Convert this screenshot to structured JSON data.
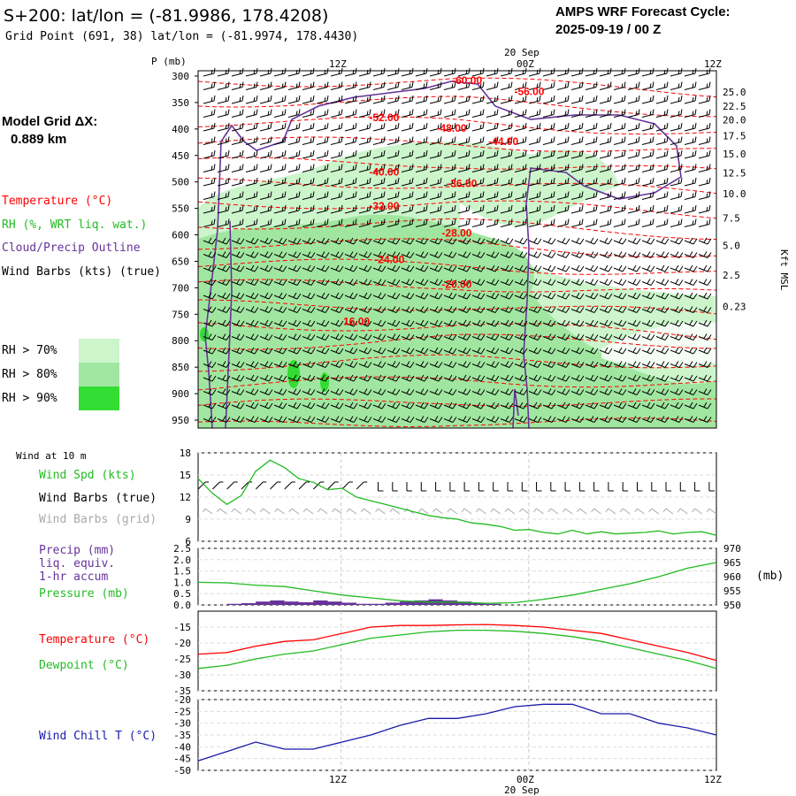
{
  "header": {
    "title": "S+200:  lat/lon = (-81.9986, 178.4208)",
    "subtitle": "Grid Point (691, 38) lat/lon = (-81.9974, 178.4430)",
    "cycle_line1": "AMPS WRF Forecast Cycle:",
    "cycle_line2": "2025-09-19 / 00  Z",
    "model_grid_label": "Model Grid ΔX:",
    "model_grid_value": "0.889 km"
  },
  "time_axis": {
    "top_date": "20 Sep",
    "bottom_date": "20 Sep",
    "ticks": [
      "12Z",
      "00Z",
      "12Z"
    ],
    "bottom_ticks": [
      "12Z",
      "00Z",
      "12Z"
    ]
  },
  "legend": {
    "temperature": "Temperature (°C)",
    "rh": "RH (%, WRT liq. wat.)",
    "cloud": "Cloud/Precip Outline",
    "wind": "Wind Barbs (kts) (true)",
    "rh70": "RH > 70%",
    "rh80": "RH > 80%",
    "rh90": "RH > 90%"
  },
  "colors": {
    "rh70": "#ccf5cc",
    "rh80": "#a0e6a0",
    "rh90": "#33dd33",
    "temperature": "#ff0000",
    "cloud": "#663399",
    "wind_spd": "#22bb22",
    "dewpoint": "#22bb22",
    "pressure": "#22bb22",
    "precip": "#663399",
    "wind_chill": "#1a1aaa",
    "grid_barbs": "#aaaaaa"
  },
  "chart_data": [
    {
      "type": "heatmap",
      "name": "cross-section",
      "ylabel": "P (mb)",
      "right_label": "Kft MSL",
      "pressure_ticks": [
        "300",
        "350",
        "400",
        "450",
        "500",
        "550",
        "600",
        "650",
        "700",
        "750",
        "800",
        "850",
        "900",
        "950"
      ],
      "pressure_levels": [
        300,
        350,
        400,
        450,
        500,
        550,
        600,
        650,
        700,
        750,
        800,
        850,
        900,
        950
      ],
      "kft_ticks": [
        "25.0",
        "22.5",
        "20.0",
        "17.5",
        "15.0",
        "12.5",
        "10.0",
        "7.5",
        "5.0",
        "2.5",
        "0.23"
      ],
      "kft_at_pressure": [
        330,
        357,
        383,
        413,
        447,
        483,
        522,
        568,
        620,
        676,
        735,
        800,
        870,
        960
      ],
      "temperature_labels": [
        {
          "text": "-60.00",
          "time_frac": 0.49,
          "pressure": 315
        },
        {
          "text": "-56.00",
          "time_frac": 0.61,
          "pressure": 336
        },
        {
          "text": "-52.00",
          "time_frac": 0.33,
          "pressure": 385
        },
        {
          "text": "-48.00",
          "time_frac": 0.46,
          "pressure": 405
        },
        {
          "text": "-44.00",
          "time_frac": 0.56,
          "pressure": 430
        },
        {
          "text": "-40.00",
          "time_frac": 0.33,
          "pressure": 488
        },
        {
          "text": "-36.00",
          "time_frac": 0.48,
          "pressure": 510
        },
        {
          "text": "-32.00",
          "time_frac": 0.33,
          "pressure": 552
        },
        {
          "text": "-28.00",
          "time_frac": 0.47,
          "pressure": 603
        },
        {
          "text": "-24.00",
          "time_frac": 0.34,
          "pressure": 653
        },
        {
          "text": "-20.00",
          "time_frac": 0.47,
          "pressure": 700
        },
        {
          "text": "16.00",
          "time_frac": 0.28,
          "pressure": 770
        }
      ]
    },
    {
      "type": "line",
      "name": "wind-speed",
      "title": "Wind at 10 m",
      "labels": [
        "Wind Spd (kts)",
        "Wind Barbs (true)",
        "Wind Barbs (grid)"
      ],
      "ylim": [
        6,
        18
      ],
      "y_ticks": [
        "18",
        "15",
        "12",
        "9",
        "6"
      ],
      "x": [
        0,
        1,
        2,
        3,
        4,
        5,
        6,
        7,
        8,
        9,
        10,
        11,
        12,
        13,
        14,
        15,
        16,
        17,
        18,
        19,
        20,
        21,
        22,
        23,
        24,
        25,
        26,
        27,
        28,
        29,
        30,
        31,
        32,
        33,
        34,
        35,
        36
      ],
      "values": [
        14.5,
        12.5,
        11,
        12.2,
        15.5,
        17,
        16,
        14.5,
        14,
        13,
        13.2,
        12,
        11.5,
        11,
        10.5,
        10,
        9.5,
        9.2,
        9,
        8.5,
        8.3,
        8,
        7.5,
        7.6,
        7.2,
        7,
        7.5,
        7,
        7.3,
        7,
        7.1,
        7.2,
        7.4,
        7,
        7.2,
        7.3,
        6.8
      ]
    },
    {
      "type": "line",
      "name": "precip-pressure",
      "labels": [
        "Precip (mm)",
        "liq. equiv.",
        "1-hr accum",
        "Pressure (mb)"
      ],
      "ylim_left": [
        0,
        2.5
      ],
      "ylim_right": [
        950,
        970
      ],
      "y_ticks_left": [
        "2.5",
        "2.0",
        "1.5",
        "1.0",
        "0.5",
        "0.0"
      ],
      "y_ticks_right": [
        "970",
        "965",
        "960",
        "955",
        "950"
      ],
      "right_unit": "(mb)",
      "precip_x": [
        2,
        3,
        4,
        5,
        6,
        7,
        8,
        9,
        10,
        11,
        12,
        13,
        14,
        15,
        16,
        17,
        18,
        19,
        20
      ],
      "precip_values": [
        0.05,
        0.08,
        0.15,
        0.2,
        0.15,
        0.12,
        0.2,
        0.15,
        0.1,
        0.05,
        0.05,
        0.1,
        0.15,
        0.2,
        0.25,
        0.2,
        0.15,
        0.1,
        0.05
      ],
      "pressure_x": [
        0,
        2,
        4,
        6,
        8,
        10,
        12,
        14,
        16,
        18,
        20,
        22,
        24,
        26,
        28,
        30,
        32,
        34,
        36
      ],
      "pressure_values": [
        958,
        957.8,
        957,
        956.5,
        955,
        953.5,
        952.5,
        951.5,
        951,
        951,
        950.6,
        950.8,
        952,
        953.5,
        955.5,
        957.5,
        960,
        963,
        965
      ]
    },
    {
      "type": "line",
      "name": "temperature-dewpoint",
      "labels": [
        "Temperature (°C)",
        "Dewpoint (°C)"
      ],
      "ylim": [
        -35,
        -10
      ],
      "y_ticks": [
        "-15",
        "-20",
        "-25",
        "-30",
        "-35"
      ],
      "x": [
        0,
        2,
        4,
        6,
        8,
        10,
        12,
        14,
        16,
        18,
        20,
        22,
        24,
        26,
        28,
        30,
        32,
        34,
        36
      ],
      "series": [
        {
          "name": "Temperature",
          "values": [
            -23.5,
            -23,
            -21,
            -19.5,
            -19,
            -17,
            -15,
            -14.5,
            -14.5,
            -14.3,
            -14.2,
            -14.5,
            -15,
            -16,
            -17,
            -19,
            -21,
            -23,
            -25.5
          ]
        },
        {
          "name": "Dewpoint",
          "values": [
            -28,
            -27,
            -25,
            -23.5,
            -22.5,
            -20.5,
            -18.5,
            -17.5,
            -16.5,
            -16,
            -16,
            -16.3,
            -17,
            -18,
            -19.5,
            -21.5,
            -23.5,
            -25.5,
            -28
          ]
        }
      ]
    },
    {
      "type": "line",
      "name": "wind-chill",
      "labels": [
        "Wind Chill T (°C)"
      ],
      "ylim": [
        -50,
        -20
      ],
      "y_ticks": [
        "-20",
        "-25",
        "-30",
        "-35",
        "-40",
        "-45",
        "-50"
      ],
      "x": [
        0,
        2,
        4,
        6,
        8,
        10,
        12,
        14,
        16,
        18,
        20,
        22,
        24,
        26,
        28,
        30,
        32,
        34,
        36
      ],
      "values": [
        -46,
        -42,
        -38,
        -41,
        -41,
        -38,
        -35,
        -31,
        -28,
        -28,
        -26,
        -23,
        -22,
        -22,
        -26,
        -26,
        -30,
        -32,
        -35
      ]
    }
  ]
}
